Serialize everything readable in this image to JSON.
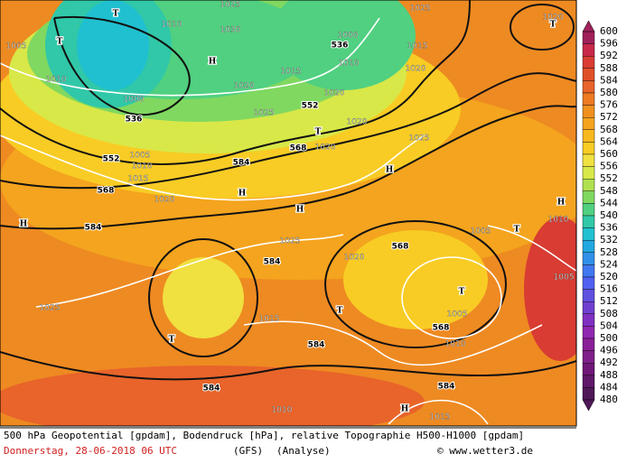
{
  "map": {
    "labels": [
      "T",
      1010,
      1025,
      1030,
      "H",
      1005,
      "T",
      1010,
      536,
      1000,
      1020,
      1025,
      552,
      1005,
      1010,
      1015,
      568,
      1020,
      584,
      "H",
      "H",
      584,
      1000,
      1010,
      536,
      1015,
      1020,
      552,
      568,
      "T",
      1020,
      1025,
      "H",
      "H",
      1025,
      584,
      1020,
      568,
      "T",
      1005,
      568,
      1010,
      "T",
      1015,
      1025,
      "T",
      584,
      584,
      584,
      "H",
      1015,
      1010,
      1005,
      "T",
      "H",
      1010,
      1005,
      "T",
      1020,
      1025,
      1015,
      1020,
      1020
    ]
  },
  "colorbar": {
    "levels": [
      600,
      596,
      592,
      588,
      584,
      580,
      576,
      572,
      568,
      564,
      560,
      556,
      552,
      548,
      544,
      540,
      536,
      532,
      528,
      524,
      520,
      516,
      512,
      508,
      504,
      500,
      496,
      492,
      488,
      484,
      480
    ],
    "colors": [
      "#a0205a",
      "#c8284a",
      "#d83c32",
      "#e05028",
      "#e8642a",
      "#ee7a22",
      "#f0901e",
      "#f4a41e",
      "#f8b81e",
      "#f8cc24",
      "#f0e040",
      "#d8e848",
      "#b0e050",
      "#80d860",
      "#50d080",
      "#30c8a8",
      "#20c0d0",
      "#20a8e0",
      "#3090e8",
      "#4078f0",
      "#5060f0",
      "#6050e0",
      "#7040d0",
      "#8030c0",
      "#9028b0",
      "#8a2098",
      "#80208a",
      "#701878",
      "#601868",
      "#501858"
    ]
  },
  "footer": {
    "line1": "500 hPa Geopotential [gpdam], Bodendruck [hPa], relative Topographie H500-H1000 [gpdam]",
    "date": "Donnerstag, 28-06-2018  06 UTC",
    "model": "(GFS)",
    "run": "(Analyse)",
    "credit": "© www.wetter3.de"
  }
}
